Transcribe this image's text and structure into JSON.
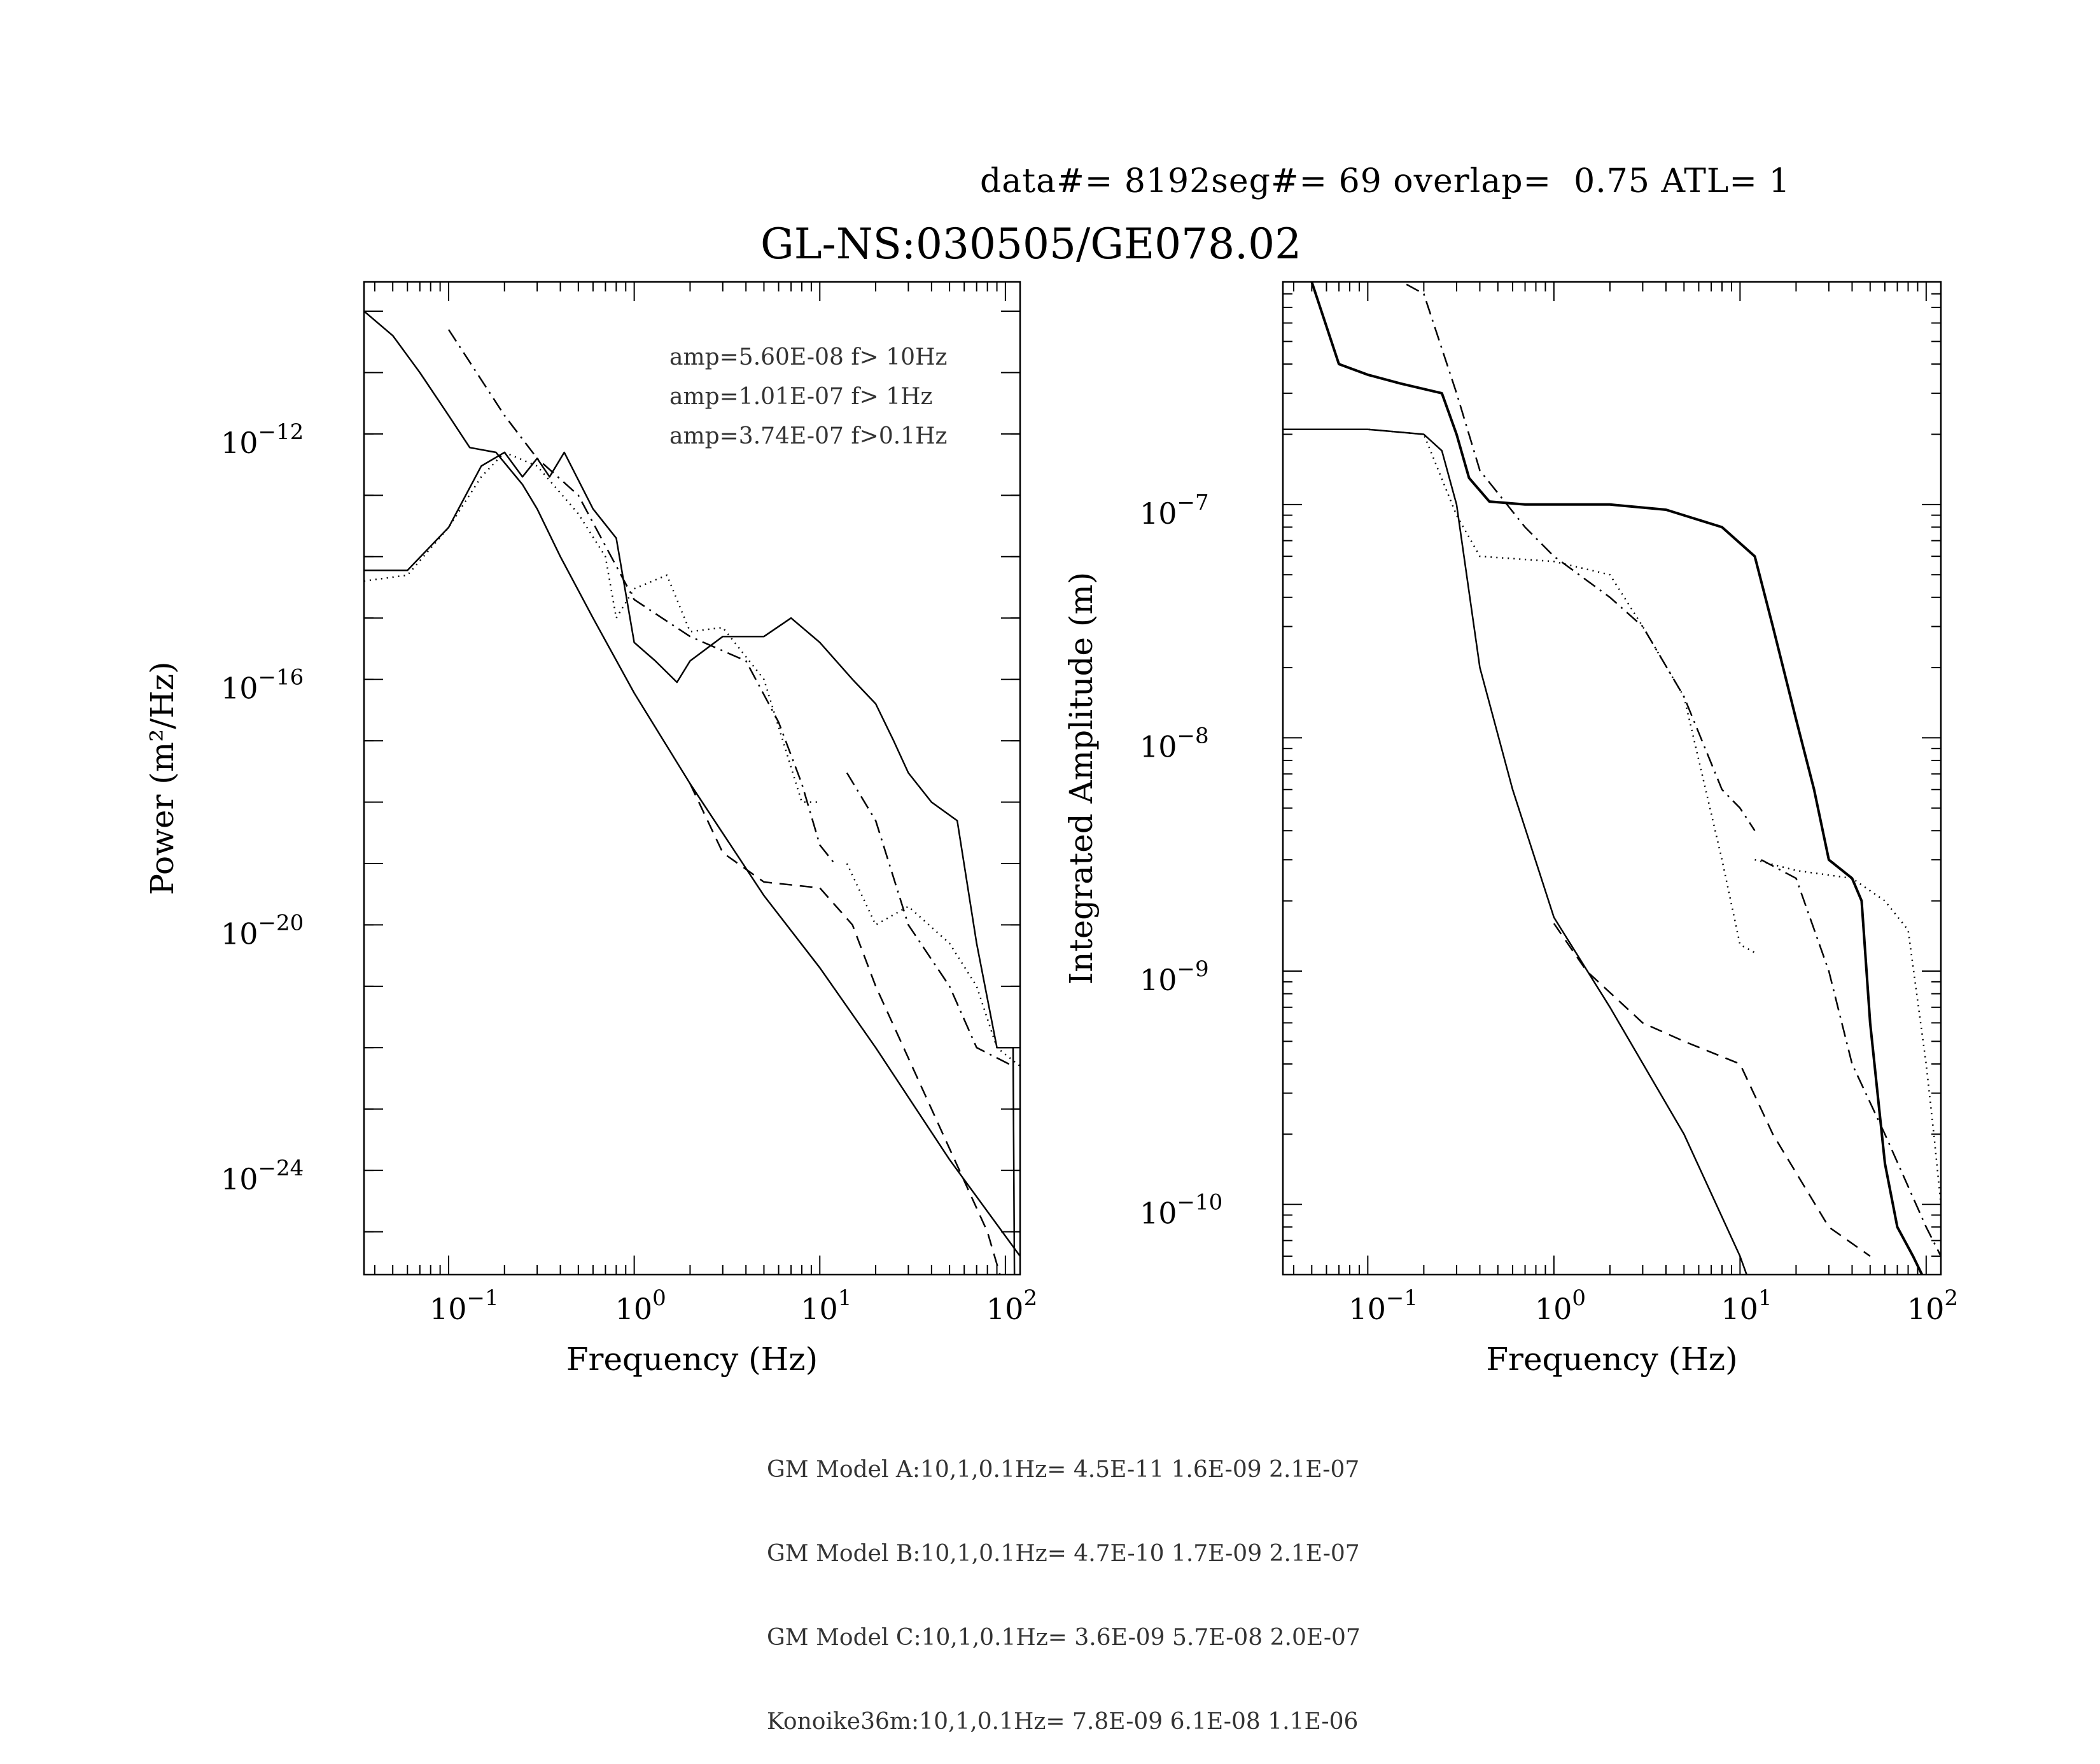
{
  "header": {
    "line": "data#= 8192seg#= 69 overlap=  0.75 ATL= 1",
    "title": "GL-NS:030505/GE078.02"
  },
  "summary": [
    "GM Model A:10,1,0.1Hz= 4.5E-11 1.6E-09 2.1E-07",
    "GM Model B:10,1,0.1Hz= 4.7E-10 1.7E-09 2.1E-07",
    "GM Model C:10,1,0.1Hz= 3.6E-09 5.7E-08 2.0E-07",
    "Konoike36m:10,1,0.1Hz= 7.8E-09 6.1E-08 1.1E-06"
  ],
  "chart_data": [
    {
      "type": "line",
      "xscale": "log",
      "yscale": "log",
      "xlabel": "Frequency (Hz)",
      "ylabel": "Power (m²/Hz)",
      "xlim": [
        0.035,
        120
      ],
      "ylim": [
        2e-26,
        3e-10
      ],
      "xticks": [
        {
          "v": 0.1,
          "label": "10",
          "exp": "−1"
        },
        {
          "v": 1,
          "label": "10",
          "exp": "0"
        },
        {
          "v": 10,
          "label": "10",
          "exp": "1"
        },
        {
          "v": 100,
          "label": "10",
          "exp": "2"
        }
      ],
      "yticks": [
        {
          "v": 1e-12,
          "label": "10",
          "exp": "−12"
        },
        {
          "v": 1e-16,
          "label": "10",
          "exp": "−16"
        },
        {
          "v": 1e-20,
          "label": "10",
          "exp": "−20"
        },
        {
          "v": 1e-24,
          "label": "10",
          "exp": "−24"
        }
      ],
      "annotations": [
        "amp=5.60E-08 f> 10Hz",
        "amp=1.01E-07 f>  1Hz",
        "amp=3.74E-07 f>0.1Hz"
      ],
      "series": [
        {
          "style": "solid",
          "points": [
            [
              0.035,
              1e-10
            ],
            [
              0.05,
              4e-11
            ],
            [
              0.07,
              1e-11
            ],
            [
              0.1,
              2e-12
            ],
            [
              0.13,
              6e-13
            ],
            [
              0.18,
              5e-13
            ],
            [
              0.25,
              1.5e-13
            ],
            [
              0.3,
              6e-14
            ],
            [
              0.4,
              1e-14
            ],
            [
              0.6,
              1e-15
            ],
            [
              1,
              6e-17
            ],
            [
              2,
              2e-18
            ],
            [
              5,
              3e-20
            ],
            [
              10,
              2e-21
            ],
            [
              20,
              1e-22
            ],
            [
              50,
              1.5e-24
            ],
            [
              120,
              4e-26
            ]
          ]
        },
        {
          "style": "solid",
          "points": [
            [
              0.035,
              6e-15
            ],
            [
              0.06,
              6e-15
            ],
            [
              0.1,
              3e-14
            ],
            [
              0.15,
              3e-13
            ],
            [
              0.2,
              5e-13
            ],
            [
              0.25,
              2e-13
            ],
            [
              0.3,
              4e-13
            ],
            [
              0.35,
              2e-13
            ],
            [
              0.42,
              5e-13
            ],
            [
              0.6,
              6e-14
            ],
            [
              0.8,
              2e-14
            ],
            [
              1,
              4e-16
            ],
            [
              1.3,
              2e-16
            ],
            [
              1.7,
              9e-17
            ],
            [
              2,
              2e-16
            ],
            [
              3,
              5e-16
            ],
            [
              5,
              5e-16
            ],
            [
              7,
              1e-15
            ],
            [
              10,
              4e-16
            ],
            [
              15,
              1e-16
            ],
            [
              20,
              4e-17
            ],
            [
              25,
              1e-17
            ],
            [
              30,
              3e-18
            ],
            [
              40,
              1e-18
            ],
            [
              55,
              5e-19
            ],
            [
              70,
              5e-21
            ],
            [
              90,
              1e-22
            ],
            [
              110,
              1e-22
            ],
            [
              112,
              1e-26
            ]
          ]
        },
        {
          "style": "dotted",
          "points": [
            [
              0.035,
              4e-15
            ],
            [
              0.06,
              5e-15
            ],
            [
              0.1,
              3e-14
            ],
            [
              0.15,
              2e-13
            ],
            [
              0.2,
              5e-13
            ],
            [
              0.3,
              3e-13
            ],
            [
              0.5,
              5e-14
            ],
            [
              0.7,
              1e-14
            ],
            [
              0.8,
              1e-15
            ],
            [
              1,
              3e-15
            ],
            [
              1.5,
              5e-15
            ],
            [
              2,
              6e-16
            ],
            [
              3,
              7e-16
            ],
            [
              5,
              1e-16
            ],
            [
              8,
              1e-18
            ],
            [
              10,
              1e-18
            ]
          ]
        },
        {
          "style": "dotted",
          "points": [
            [
              14,
              1e-19
            ],
            [
              20,
              1e-20
            ],
            [
              30,
              2e-20
            ],
            [
              50,
              5e-21
            ],
            [
              70,
              1e-21
            ],
            [
              90,
              1e-22
            ],
            [
              120,
              5e-23
            ]
          ]
        },
        {
          "style": "dashdot",
          "points": [
            [
              0.1,
              5e-11
            ],
            [
              0.2,
              2e-12
            ],
            [
              0.3,
              4e-13
            ],
            [
              0.5,
              1e-13
            ],
            [
              1,
              2e-15
            ],
            [
              2,
              5e-16
            ],
            [
              4,
              2e-16
            ],
            [
              6,
              2e-17
            ],
            [
              8,
              2e-18
            ],
            [
              10,
              2e-19
            ],
            [
              12,
              1e-19
            ]
          ]
        },
        {
          "style": "dashdot",
          "points": [
            [
              14,
              3e-18
            ],
            [
              20,
              5e-19
            ],
            [
              30,
              1e-20
            ],
            [
              50,
              1e-21
            ],
            [
              70,
              1e-22
            ],
            [
              110,
              5e-23
            ]
          ]
        },
        {
          "style": "dashed",
          "points": [
            [
              2,
              2e-18
            ],
            [
              3,
              1.5e-19
            ],
            [
              5,
              5e-20
            ],
            [
              10,
              4e-20
            ],
            [
              15,
              1e-20
            ],
            [
              20,
              1e-21
            ],
            [
              40,
              1e-23
            ],
            [
              80,
              1e-25
            ],
            [
              100,
              1e-26
            ]
          ]
        }
      ]
    },
    {
      "type": "line",
      "xscale": "log",
      "yscale": "log",
      "xlabel": "Frequency (Hz)",
      "ylabel": "Integrated Amplitude (m)",
      "xlim": [
        0.035,
        120
      ],
      "ylim": [
        5e-11,
        9e-07
      ],
      "xticks": [
        {
          "v": 0.1,
          "label": "10",
          "exp": "−1"
        },
        {
          "v": 1,
          "label": "10",
          "exp": "0"
        },
        {
          "v": 10,
          "label": "10",
          "exp": "1"
        },
        {
          "v": 100,
          "label": "10",
          "exp": "2"
        }
      ],
      "yticks": [
        {
          "v": 1e-07,
          "label": "10",
          "exp": "−7"
        },
        {
          "v": 1e-08,
          "label": "10",
          "exp": "−8"
        },
        {
          "v": 1e-09,
          "label": "10",
          "exp": "−9"
        },
        {
          "v": 1e-10,
          "label": "10",
          "exp": "−10"
        }
      ],
      "series": [
        {
          "style": "solid",
          "points": [
            [
              0.05,
              9e-07
            ],
            [
              0.07,
              4e-07
            ],
            [
              0.1,
              3.6e-07
            ],
            [
              0.15,
              3.3e-07
            ],
            [
              0.25,
              3e-07
            ],
            [
              0.3,
              2e-07
            ],
            [
              0.35,
              1.3e-07
            ],
            [
              0.45,
              1.03e-07
            ],
            [
              0.7,
              1e-07
            ],
            [
              1,
              1e-07
            ],
            [
              2,
              1e-07
            ],
            [
              4,
              9.5e-08
            ],
            [
              8,
              8e-08
            ],
            [
              12,
              6e-08
            ],
            [
              15,
              3e-08
            ],
            [
              20,
              1.2e-08
            ],
            [
              25,
              6e-09
            ],
            [
              30,
              3e-09
            ],
            [
              40,
              2.5e-09
            ],
            [
              45,
              2e-09
            ],
            [
              50,
              6e-10
            ],
            [
              60,
              1.5e-10
            ],
            [
              70,
              8e-11
            ],
            [
              85,
              6e-11
            ],
            [
              95,
              5e-11
            ]
          ]
        },
        {
          "style": "solid",
          "points": [
            [
              0.035,
              2.1e-07
            ],
            [
              0.1,
              2.1e-07
            ],
            [
              0.2,
              2e-07
            ],
            [
              0.25,
              1.7e-07
            ],
            [
              0.3,
              1e-07
            ],
            [
              0.4,
              2e-08
            ],
            [
              0.6,
              6e-09
            ],
            [
              1,
              1.7e-09
            ],
            [
              2,
              7e-10
            ],
            [
              5,
              2e-10
            ],
            [
              10,
              6e-11
            ],
            [
              12,
              4e-11
            ]
          ]
        },
        {
          "style": "dotted",
          "points": [
            [
              0.035,
              2.1e-07
            ],
            [
              0.1,
              2.1e-07
            ],
            [
              0.2,
              2e-07
            ],
            [
              0.3,
              9e-08
            ],
            [
              0.4,
              6e-08
            ],
            [
              1,
              5.7e-08
            ],
            [
              2,
              5e-08
            ],
            [
              3,
              3e-08
            ],
            [
              5,
              1.5e-08
            ],
            [
              8,
              3e-09
            ],
            [
              10,
              1.3e-09
            ],
            [
              12,
              1.2e-09
            ]
          ]
        },
        {
          "style": "dotted",
          "points": [
            [
              12,
              3e-09
            ],
            [
              20,
              2.7e-09
            ],
            [
              40,
              2.5e-09
            ],
            [
              60,
              2e-09
            ],
            [
              80,
              1.5e-09
            ],
            [
              100,
              4e-10
            ],
            [
              110,
              2e-10
            ],
            [
              120,
              1e-10
            ]
          ]
        },
        {
          "style": "dashdot",
          "points": [
            [
              0.12,
              1e-06
            ],
            [
              0.2,
              8e-07
            ],
            [
              0.3,
              3e-07
            ],
            [
              0.4,
              1.4e-07
            ],
            [
              0.7,
              8e-08
            ],
            [
              1,
              6e-08
            ],
            [
              2,
              4e-08
            ],
            [
              3,
              3e-08
            ],
            [
              5,
              1.5e-08
            ],
            [
              8,
              6e-09
            ],
            [
              10,
              5e-09
            ],
            [
              12,
              4e-09
            ]
          ]
        },
        {
          "style": "dashdot",
          "points": [
            [
              13,
              3e-09
            ],
            [
              20,
              2.5e-09
            ],
            [
              30,
              1e-09
            ],
            [
              40,
              4e-10
            ],
            [
              60,
              2e-10
            ],
            [
              100,
              8e-11
            ],
            [
              120,
              6e-11
            ]
          ]
        },
        {
          "style": "dashed",
          "points": [
            [
              1,
              1.6e-09
            ],
            [
              1.5,
              1e-09
            ],
            [
              3,
              6e-10
            ],
            [
              5,
              5e-10
            ],
            [
              10,
              4e-10
            ],
            [
              15,
              2e-10
            ],
            [
              30,
              8e-11
            ],
            [
              50,
              6e-11
            ]
          ]
        }
      ]
    }
  ],
  "colors": {
    "ink": "#000000",
    "background": "#ffffff"
  }
}
